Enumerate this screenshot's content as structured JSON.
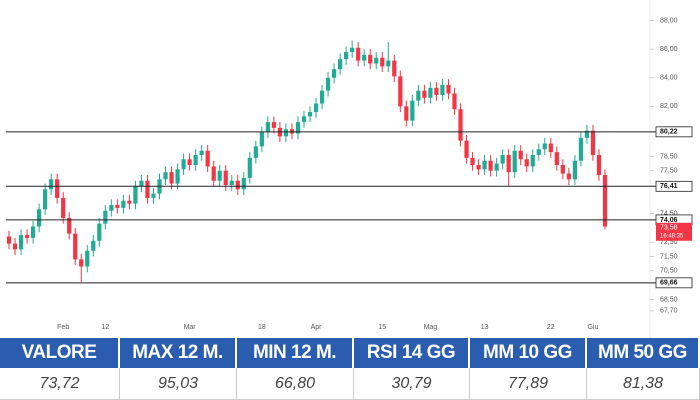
{
  "chart_data": {
    "type": "candlestick",
    "up_color": "#22ab94",
    "down_color": "#f23645",
    "x": [
      null,
      null,
      null,
      null,
      null,
      null,
      null,
      null,
      null,
      "Feb",
      null,
      null,
      null,
      null,
      null,
      null,
      "12",
      null,
      null,
      null,
      null,
      null,
      null,
      null,
      null,
      null,
      null,
      null,
      null,
      null,
      "Mar",
      null,
      null,
      null,
      null,
      null,
      null,
      null,
      null,
      null,
      null,
      null,
      "18",
      null,
      null,
      null,
      null,
      null,
      null,
      null,
      null,
      "Apr",
      null,
      null,
      null,
      null,
      null,
      null,
      null,
      null,
      null,
      null,
      "15",
      null,
      null,
      null,
      null,
      null,
      null,
      null,
      "Mag",
      null,
      null,
      null,
      null,
      null,
      null,
      null,
      null,
      "13",
      null,
      null,
      null,
      null,
      null,
      null,
      null,
      null,
      null,
      null,
      "22",
      null,
      null,
      null,
      null,
      null,
      null,
      "Giu",
      null,
      null
    ],
    "open": [
      72.9,
      72.4,
      72.0,
      73.0,
      72.8,
      73.6,
      74.8,
      76.2,
      76.9,
      75.6,
      74.2,
      73.1,
      71.3,
      70.8,
      71.9,
      72.6,
      73.8,
      74.7,
      75.1,
      74.9,
      75.4,
      75.2,
      76.4,
      76.8,
      75.6,
      75.9,
      76.9,
      77.4,
      76.6,
      77.6,
      78.3,
      77.9,
      78.6,
      78.9,
      77.8,
      76.8,
      77.5,
      76.5,
      76.8,
      76.2,
      77.0,
      78.4,
      79.2,
      80.2,
      80.9,
      80.5,
      79.9,
      80.4,
      80.1,
      80.9,
      81.3,
      81.6,
      82.2,
      83.1,
      84.0,
      84.6,
      85.3,
      85.8,
      86.1,
      85.2,
      85.6,
      85.0,
      85.4,
      84.8,
      85.2,
      84.1,
      82.0,
      81.0,
      82.4,
      83.1,
      82.6,
      83.3,
      82.8,
      83.5,
      82.9,
      81.8,
      79.6,
      78.4,
      77.9,
      77.6,
      78.2,
      77.5,
      78.0,
      78.6,
      77.4,
      78.9,
      78.3,
      77.8,
      78.6,
      79.0,
      79.4,
      78.8,
      77.9,
      77.3,
      76.9,
      78.2,
      79.8,
      80.3,
      78.6,
      77.2
    ],
    "high": [
      73.3,
      72.8,
      73.4,
      73.4,
      74.0,
      75.2,
      76.6,
      77.3,
      77.3,
      76.0,
      74.6,
      73.5,
      71.7,
      72.3,
      73.0,
      74.2,
      75.1,
      75.5,
      75.5,
      75.8,
      75.8,
      76.8,
      77.2,
      77.2,
      76.3,
      77.3,
      77.8,
      77.8,
      78.0,
      78.7,
      78.7,
      79.0,
      79.3,
      79.3,
      78.2,
      77.9,
      77.9,
      77.2,
      77.2,
      77.4,
      78.8,
      79.6,
      80.6,
      81.3,
      81.3,
      80.9,
      80.8,
      80.8,
      81.3,
      81.7,
      82.0,
      82.6,
      83.5,
      84.4,
      85.0,
      85.7,
      86.2,
      86.6,
      86.5,
      86.0,
      86.0,
      85.8,
      85.8,
      86.5,
      85.6,
      84.5,
      82.4,
      82.8,
      83.5,
      83.5,
      83.7,
      83.7,
      83.9,
      83.9,
      83.3,
      82.2,
      80.0,
      78.8,
      78.3,
      78.6,
      78.6,
      78.4,
      79.0,
      79.0,
      79.3,
      79.3,
      78.7,
      79.0,
      79.4,
      79.8,
      79.8,
      79.2,
      78.3,
      77.7,
      78.6,
      80.2,
      80.7,
      80.7,
      79.0,
      77.6
    ],
    "low": [
      72.0,
      71.6,
      71.6,
      72.4,
      72.4,
      73.2,
      74.4,
      75.8,
      75.2,
      73.8,
      72.7,
      70.9,
      69.7,
      70.4,
      71.5,
      72.2,
      73.4,
      74.3,
      74.5,
      74.5,
      74.8,
      74.8,
      76.0,
      75.2,
      75.2,
      75.5,
      76.5,
      76.2,
      76.2,
      77.2,
      77.5,
      77.5,
      78.2,
      77.4,
      76.4,
      76.4,
      76.1,
      76.1,
      75.8,
      75.8,
      76.6,
      78.0,
      78.8,
      79.8,
      80.1,
      79.5,
      79.5,
      79.7,
      79.7,
      80.5,
      80.9,
      81.2,
      81.8,
      82.7,
      83.6,
      84.2,
      84.9,
      85.4,
      84.8,
      84.8,
      84.6,
      84.6,
      84.4,
      84.4,
      83.7,
      81.6,
      80.6,
      80.6,
      82.0,
      82.2,
      82.2,
      82.4,
      82.4,
      82.5,
      81.4,
      79.2,
      78.0,
      77.5,
      77.2,
      77.2,
      77.1,
      77.1,
      77.6,
      76.4,
      77.0,
      77.9,
      77.4,
      77.4,
      78.2,
      78.6,
      78.4,
      77.5,
      76.9,
      76.5,
      76.5,
      77.8,
      79.4,
      78.2,
      76.8,
      73.4
    ],
    "close": [
      72.4,
      72.0,
      73.0,
      72.8,
      73.6,
      74.8,
      76.2,
      76.9,
      75.6,
      74.2,
      73.1,
      71.3,
      70.8,
      71.9,
      72.6,
      73.8,
      74.7,
      75.1,
      74.9,
      75.4,
      75.2,
      76.4,
      76.8,
      75.6,
      75.9,
      76.9,
      77.4,
      76.6,
      77.6,
      78.3,
      77.9,
      78.6,
      78.9,
      77.8,
      76.8,
      77.5,
      76.5,
      76.8,
      76.2,
      77.0,
      78.4,
      79.2,
      80.2,
      80.9,
      80.5,
      79.9,
      80.4,
      80.1,
      80.9,
      81.3,
      81.6,
      82.2,
      83.1,
      84.0,
      84.6,
      85.3,
      85.8,
      86.1,
      85.2,
      85.6,
      85.0,
      85.4,
      84.8,
      85.2,
      84.1,
      82.0,
      81.0,
      82.4,
      83.1,
      82.6,
      83.3,
      82.8,
      83.5,
      82.9,
      81.8,
      79.6,
      78.4,
      77.9,
      77.6,
      78.2,
      77.5,
      78.0,
      78.6,
      77.4,
      78.9,
      78.3,
      77.8,
      78.6,
      79.0,
      79.4,
      78.8,
      77.9,
      77.3,
      76.9,
      78.2,
      79.8,
      80.3,
      78.6,
      77.2,
      73.6
    ],
    "ylim": [
      67.2,
      88.6
    ],
    "yticks": [
      {
        "value": 88,
        "label": "88,00"
      },
      {
        "value": 86,
        "label": "86,00"
      },
      {
        "value": 84,
        "label": "84,00"
      },
      {
        "value": 82,
        "label": "82,00"
      },
      {
        "value": 78.5,
        "label": "78,50"
      },
      {
        "value": 77.5,
        "label": "77,50"
      },
      {
        "value": 74.5,
        "label": "74,50"
      },
      {
        "value": 72.5,
        "label": "72,50"
      },
      {
        "value": 71.5,
        "label": "71,50"
      },
      {
        "value": 70.5,
        "label": "70,50"
      },
      {
        "value": 68.5,
        "label": "68,50"
      },
      {
        "value": 67.7,
        "label": "67,70"
      }
    ],
    "hlines": [
      {
        "value": 80.22,
        "label": "80,22"
      },
      {
        "value": 76.41,
        "label": "76,41"
      },
      {
        "value": 74.06,
        "label": "74,06"
      },
      {
        "value": 69.66,
        "label": "69,66"
      }
    ],
    "last_price": {
      "value": 73.58,
      "label": "73,58",
      "time": "16:48:35"
    }
  },
  "table": {
    "header": [
      "VALORE",
      "MAX 12 M.",
      "MIN 12 M.",
      "RSI 14 GG",
      "MM 10 GG",
      "MM 50 GG"
    ],
    "row": [
      "73,72",
      "95,03",
      "66,80",
      "30,79",
      "77,89",
      "81,38"
    ]
  }
}
